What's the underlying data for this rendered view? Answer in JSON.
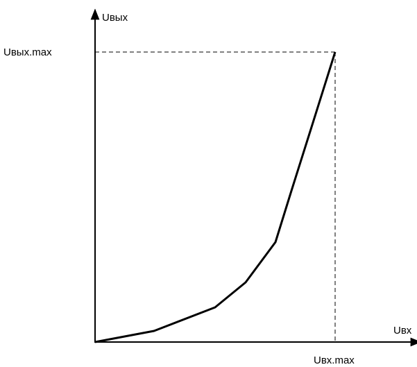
{
  "labels": {
    "y_axis": "Uвых",
    "y_max": "Uвых.max",
    "x_axis": "Uвх",
    "x_max": "Uвх.max"
  }
}
